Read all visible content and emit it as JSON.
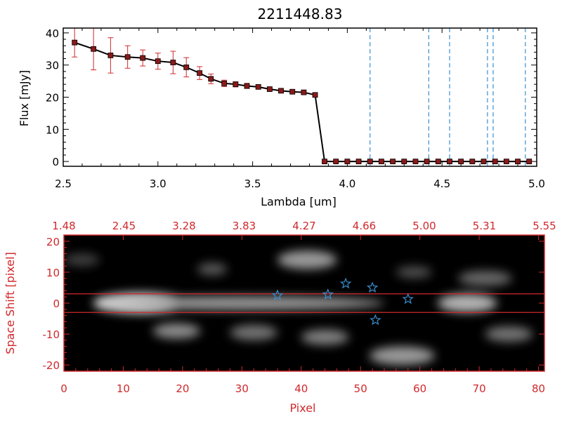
{
  "colors": {
    "axis_top": "#000000",
    "axis_bottom": "#d0282c",
    "error_bars": "#d0282c",
    "markers": "#8a1a1a",
    "dashed_lines": "#3a8fd0",
    "stars": "#3a8fd0",
    "trace_lines": "#d0282c"
  },
  "chart_data": [
    {
      "type": "line",
      "title": "2211448.83",
      "xlabel": "Lambda [um]",
      "ylabel": "Flux [mJy]",
      "xlim": [
        2.5,
        5.0
      ],
      "ylim": [
        -1.5,
        41.5
      ],
      "x_ticks": [
        "2.5",
        "3.0",
        "3.5",
        "4.0",
        "4.5",
        "5.0"
      ],
      "y_ticks": [
        "0",
        "10",
        "20",
        "30",
        "40"
      ],
      "series": [
        {
          "x": [
            2.56,
            2.66,
            2.75,
            2.84,
            2.92,
            3.0,
            3.08,
            3.15,
            3.22,
            3.28,
            3.35,
            3.41,
            3.47,
            3.53,
            3.59,
            3.65,
            3.71,
            3.77,
            3.83,
            3.88,
            3.94,
            4.0,
            4.06,
            4.12,
            4.18,
            4.24,
            4.3,
            4.36,
            4.42,
            4.48,
            4.54,
            4.6,
            4.66,
            4.72,
            4.78,
            4.84,
            4.9,
            4.96
          ],
          "y": [
            37,
            35,
            33,
            32.5,
            32.2,
            31.2,
            30.8,
            29.3,
            27.5,
            25.7,
            24.3,
            24.0,
            23.5,
            23.2,
            22.5,
            22.0,
            21.7,
            21.5,
            20.7,
            0,
            0,
            0,
            0,
            0,
            0,
            0,
            0,
            0,
            0,
            0,
            0,
            0,
            0,
            0,
            0,
            0,
            0,
            0
          ],
          "yerr": [
            4.5,
            6.5,
            5.5,
            3.5,
            2.5,
            2.5,
            3.5,
            3.0,
            2.0,
            1.5,
            1.0,
            0.8,
            0.8,
            0.6,
            0.6,
            0.6,
            0.6,
            0.6,
            0.6,
            0.3,
            0.3,
            0.3,
            0.3,
            0.3,
            0.3,
            0.3,
            0.3,
            0.3,
            0.3,
            0.3,
            0.3,
            0.3,
            0.3,
            0.3,
            0.3,
            0.3,
            0.3,
            0.3
          ]
        }
      ],
      "vertical_lines_x": [
        4.12,
        4.43,
        4.54,
        4.74,
        4.77,
        4.94
      ]
    },
    {
      "type": "heatmap",
      "xlabel": "Pixel",
      "ylabel": "Space Shift [pixel]",
      "xlim": [
        0,
        81
      ],
      "ylim": [
        -22,
        22
      ],
      "x_ticks": [
        "0",
        "10",
        "20",
        "30",
        "40",
        "50",
        "60",
        "70",
        "80"
      ],
      "y_ticks": [
        "-20",
        "-10",
        "0",
        "10",
        "20"
      ],
      "top_axis_ticks": [
        "1.48",
        "2.45",
        "3.28",
        "3.83",
        "4.27",
        "4.66",
        "5.00",
        "5.31",
        "5.55"
      ],
      "trace_lines_y": [
        3,
        -3
      ],
      "stars": [
        {
          "x": 36,
          "y": 2.5
        },
        {
          "x": 44.5,
          "y": 2.8
        },
        {
          "x": 47.5,
          "y": 6.3
        },
        {
          "x": 52,
          "y": 5
        },
        {
          "x": 52.5,
          "y": -5.5
        },
        {
          "x": 58,
          "y": 1.3
        }
      ],
      "blobs": [
        {
          "x": 13,
          "y": 0,
          "rx": 8,
          "ry": 3.2,
          "intensity": 1.0
        },
        {
          "x": 30,
          "y": 0,
          "rx": 24,
          "ry": 2.2,
          "intensity": 0.6
        },
        {
          "x": 68,
          "y": 0,
          "rx": 5,
          "ry": 3,
          "intensity": 0.7
        },
        {
          "x": 41,
          "y": 14,
          "rx": 5,
          "ry": 3,
          "intensity": 0.6
        },
        {
          "x": 25,
          "y": 11,
          "rx": 2.5,
          "ry": 2,
          "intensity": 0.35
        },
        {
          "x": 19,
          "y": -9,
          "rx": 4,
          "ry": 2.5,
          "intensity": 0.55
        },
        {
          "x": 32,
          "y": -9.5,
          "rx": 4,
          "ry": 2.5,
          "intensity": 0.45
        },
        {
          "x": 44,
          "y": -11,
          "rx": 4,
          "ry": 2.5,
          "intensity": 0.5
        },
        {
          "x": 57,
          "y": -17,
          "rx": 5.5,
          "ry": 3,
          "intensity": 0.6
        },
        {
          "x": 71,
          "y": 8,
          "rx": 4.5,
          "ry": 2.5,
          "intensity": 0.4
        },
        {
          "x": 75,
          "y": -10,
          "rx": 4,
          "ry": 2.5,
          "intensity": 0.45
        },
        {
          "x": 3,
          "y": 14,
          "rx": 3,
          "ry": 2,
          "intensity": 0.25
        },
        {
          "x": 59,
          "y": 10,
          "rx": 3,
          "ry": 2,
          "intensity": 0.3
        }
      ]
    }
  ]
}
